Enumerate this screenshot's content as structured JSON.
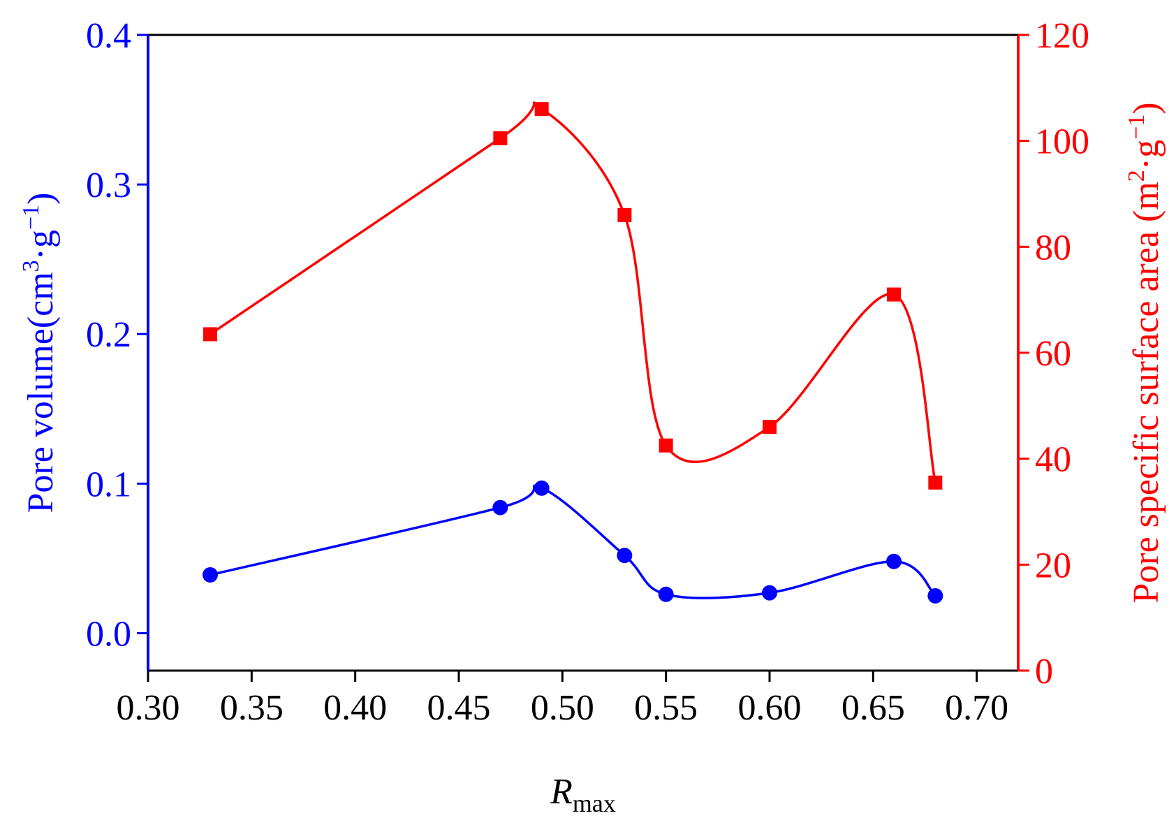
{
  "chart_data": {
    "type": "line",
    "x_axis": {
      "label_main": "R",
      "label_sub": "max",
      "range": [
        0.3,
        0.72
      ],
      "ticks": [
        0.3,
        0.35,
        0.4,
        0.45,
        0.5,
        0.55,
        0.6,
        0.65,
        0.7
      ],
      "tick_labels": [
        "0.30",
        "0.35",
        "0.40",
        "0.45",
        "0.50",
        "0.55",
        "0.60",
        "0.65",
        "0.70"
      ]
    },
    "y_left": {
      "label_main": "Pore volume(cm",
      "label_sup1": "3",
      "label_mid": "·g",
      "label_sup2": "−1",
      "label_end": ")",
      "range": [
        -0.025,
        0.4
      ],
      "ticks": [
        0.0,
        0.1,
        0.2,
        0.3,
        0.4
      ],
      "tick_labels": [
        "0.0",
        "0.1",
        "0.2",
        "0.3",
        "0.4"
      ],
      "color": "#0000ff"
    },
    "y_right": {
      "label_main": "Pore specific surface area (m",
      "label_sup1": "2",
      "label_mid": "·g",
      "label_sup2": "−1",
      "label_end": ")",
      "range": [
        0,
        120
      ],
      "ticks": [
        0,
        20,
        40,
        60,
        80,
        100,
        120
      ],
      "tick_labels": [
        "0",
        "20",
        "40",
        "60",
        "80",
        "100",
        "120"
      ],
      "color": "#ff0000"
    },
    "series": [
      {
        "axis": "left",
        "marker": "circle",
        "color": "#0000ff",
        "x": [
          0.33,
          0.47,
          0.49,
          0.53,
          0.55,
          0.6,
          0.66,
          0.68
        ],
        "y": [
          0.039,
          0.084,
          0.097,
          0.052,
          0.026,
          0.027,
          0.048,
          0.025
        ]
      },
      {
        "axis": "right",
        "marker": "square",
        "color": "#ff0000",
        "x": [
          0.33,
          0.47,
          0.49,
          0.53,
          0.55,
          0.6,
          0.66,
          0.68
        ],
        "y": [
          63.5,
          100.5,
          106,
          86,
          42.5,
          46,
          71,
          35.5
        ]
      }
    ],
    "grid": false,
    "legend": "none"
  }
}
